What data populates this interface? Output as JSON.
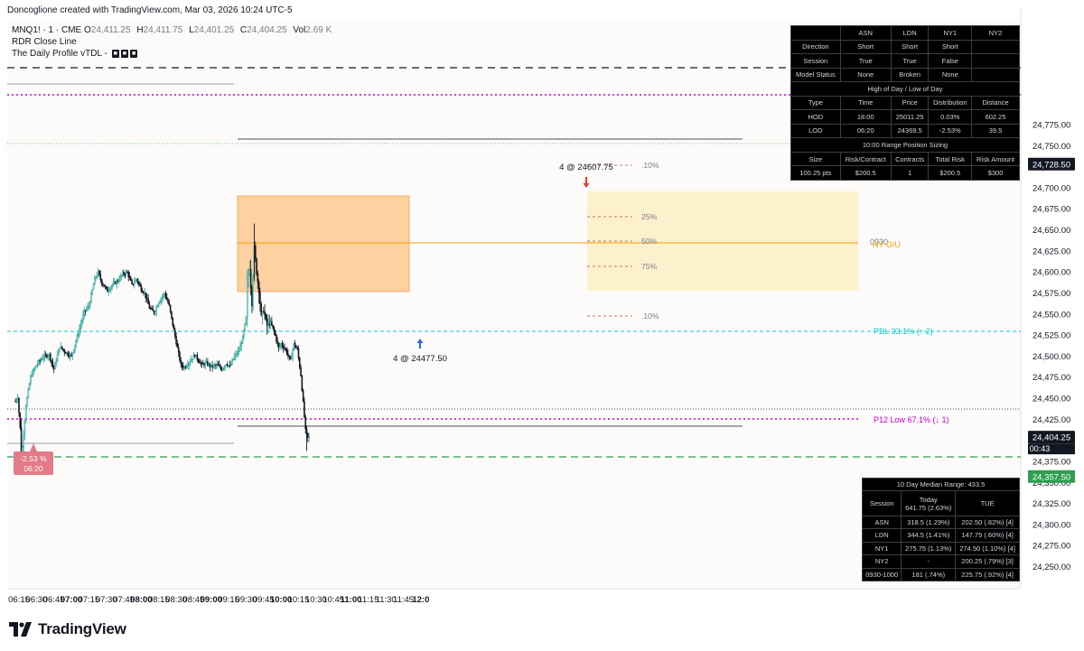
{
  "header": {
    "attribution": "Doncoglione created with TradingView.com, Mar 03, 2026 10:24 UTC-5"
  },
  "legend": {
    "symbol": "MNQ1! · 1 · CME",
    "ohlc": [
      {
        "k": "O",
        "v": "24,411.25"
      },
      {
        "k": "H",
        "v": "24,411.75"
      },
      {
        "k": "L",
        "v": "24,401.25"
      },
      {
        "k": "C",
        "v": "24,404.25"
      },
      {
        "k": "Vol",
        "v": "2.69 K"
      }
    ],
    "indicator_1": "RDR Close Line",
    "indicator_2": "The Daily Profile vTDL -",
    "indicator_2_pills": [
      "■",
      "■",
      "■"
    ]
  },
  "brand": {
    "name": "TradingView",
    "icon": "tradingview-logo-icon"
  },
  "colors": {
    "up": "#26a69a",
    "up_fill": "#ffffff",
    "down": "#131722",
    "magenta": "#cc00cc",
    "green": "#2e8b57",
    "cyan": "#00cccc",
    "orange_box": "#ffc58a",
    "yellow_box": "#fdebb9",
    "orange_line": "#f0a500",
    "pink_label": "#e37a87",
    "blue_arrow": "#2962ff",
    "red_arrow": "#e53935"
  },
  "chart_data": {
    "type": "candlestick",
    "title": "MNQ1! 1-minute",
    "x_tick_labels": [
      "06:15",
      "06:30",
      "06:45",
      "07:00",
      "07:15",
      "07:30",
      "07:45",
      "08:00",
      "08:15",
      "08:30",
      "08:45",
      "09:00",
      "09:15",
      "09:30",
      "09:45",
      "10:00",
      "10:15",
      "10:30",
      "10:45",
      "11:00",
      "11:15",
      "11:30",
      "11:45",
      "12:0"
    ],
    "x_tick_bold": [
      "07:00",
      "08:00",
      "09:00",
      "10:00",
      "11:00",
      "12:0"
    ],
    "y_tick_labels": [
      "24,250.00",
      "24,275.00",
      "24,300.00",
      "24,325.00",
      "24,350.00",
      "24,375.00",
      "24,400.00",
      "24,425.00",
      "24,450.00",
      "24,475.00",
      "24,500.00",
      "24,525.00",
      "24,550.00",
      "24,575.00",
      "24,600.00",
      "24,625.00",
      "24,650.00",
      "24,675.00",
      "24,700.00",
      "24,725.00",
      "24,750.00",
      "24,775.00"
    ],
    "ylim": [
      24240,
      24785
    ],
    "price_tags": [
      {
        "label": "24,728.50",
        "price": 24728.5,
        "color": "#131722"
      },
      {
        "label": "24,404.25",
        "sub": "00:43",
        "price": 24404.25,
        "color": "#131722"
      },
      {
        "label": "24,357.50",
        "price": 24357.5,
        "color": "#2e9e4f"
      }
    ],
    "anchors": [
      [
        "06:12",
        24447
      ],
      [
        "06:14",
        24452
      ],
      [
        "06:16",
        24415
      ],
      [
        "06:17",
        24383
      ],
      [
        "06:18",
        24392
      ],
      [
        "06:21",
        24442
      ],
      [
        "06:25",
        24476
      ],
      [
        "06:30",
        24490
      ],
      [
        "06:36",
        24500
      ],
      [
        "06:41",
        24502
      ],
      [
        "06:45",
        24485
      ],
      [
        "06:50",
        24512
      ],
      [
        "06:55",
        24505
      ],
      [
        "07:00",
        24500
      ],
      [
        "07:06",
        24528
      ],
      [
        "07:11",
        24553
      ],
      [
        "07:15",
        24560
      ],
      [
        "07:17",
        24572
      ],
      [
        "07:20",
        24592
      ],
      [
        "07:23",
        24600
      ],
      [
        "07:26",
        24588
      ],
      [
        "07:31",
        24578
      ],
      [
        "07:35",
        24585
      ],
      [
        "07:40",
        24590
      ],
      [
        "07:44",
        24598
      ],
      [
        "07:48",
        24600
      ],
      [
        "07:52",
        24585
      ],
      [
        "07:56",
        24592
      ],
      [
        "08:00",
        24580
      ],
      [
        "08:03",
        24575
      ],
      [
        "08:07",
        24558
      ],
      [
        "08:11",
        24552
      ],
      [
        "08:15",
        24565
      ],
      [
        "08:20",
        24575
      ],
      [
        "08:24",
        24560
      ],
      [
        "08:27",
        24538
      ],
      [
        "08:31",
        24510
      ],
      [
        "08:34",
        24490
      ],
      [
        "08:37",
        24487
      ],
      [
        "08:42",
        24495
      ],
      [
        "08:46",
        24502
      ],
      [
        "08:52",
        24490
      ],
      [
        "08:56",
        24492
      ],
      [
        "09:00",
        24488
      ],
      [
        "09:05",
        24490
      ],
      [
        "09:09",
        24485
      ],
      [
        "09:13",
        24492
      ],
      [
        "09:16",
        24488
      ],
      [
        "09:20",
        24500
      ],
      [
        "09:24",
        24507
      ],
      [
        "09:27",
        24522
      ],
      [
        "09:30",
        24545
      ],
      [
        "09:31",
        24590
      ],
      [
        "09:33",
        24605
      ],
      [
        "09:35",
        24562
      ],
      [
        "09:37",
        24630
      ],
      [
        "09:39",
        24600
      ],
      [
        "09:41",
        24578
      ],
      [
        "09:43",
        24548
      ],
      [
        "09:45",
        24555
      ],
      [
        "09:48",
        24537
      ],
      [
        "09:51",
        24540
      ],
      [
        "09:54",
        24530
      ],
      [
        "09:58",
        24510
      ],
      [
        "10:00",
        24515
      ],
      [
        "10:04",
        24508
      ],
      [
        "10:08",
        24495
      ],
      [
        "10:11",
        24515
      ],
      [
        "10:14",
        24508
      ],
      [
        "10:17",
        24478
      ],
      [
        "10:19",
        24445
      ],
      [
        "10:21",
        24412
      ],
      [
        "10:23",
        24403
      ],
      [
        "10:24",
        24404
      ]
    ],
    "session_table": {
      "columns": [
        "",
        "ASN",
        "LDN",
        "NY1",
        "NY2"
      ],
      "rows": [
        [
          "Direction",
          "Short",
          "Short",
          "Short",
          ""
        ],
        [
          "Session",
          "True",
          "True",
          "False",
          ""
        ],
        [
          "Model Status",
          "None",
          "Broken",
          "None",
          ""
        ]
      ],
      "hl_title": "High of Day / Low of Day",
      "hl_columns": [
        "Type",
        "Time",
        "Price",
        "Distribution",
        "Distance"
      ],
      "hl_rows": [
        [
          "HOD",
          "18:00",
          "25011.25",
          "0.03%",
          "602.25"
        ],
        [
          "LOD",
          "06:20",
          "24369.5",
          "-2.53%",
          "39.5"
        ]
      ],
      "size_title": "10:00 Range Position Sizing",
      "size_columns": [
        "Size",
        "Risk/Contract",
        "Contracts",
        "Total Risk",
        "Risk Amount"
      ],
      "size_rows": [
        [
          "100.25 pts",
          "$200.5",
          "1",
          "$200.5",
          "$300"
        ]
      ]
    },
    "range_table": {
      "title": "10 Day Median Range: 433.5",
      "head": [
        "Session",
        "Today\n641.75 (2.63%)",
        "TUE"
      ],
      "rows": [
        [
          "ASN",
          "318.5 (1.29%)",
          "202.50 (.82%) [4]"
        ],
        [
          "LDN",
          "344.5 (1.41%)",
          "147.75 (.60%) [4]"
        ],
        [
          "NY1",
          "275.75 (1.13%)",
          "274.50 (1.10%) [4]"
        ],
        [
          "NY2",
          "-",
          "200.25 (.79%) [3]"
        ],
        [
          "0930-1000",
          "181 (.74%)",
          "225.75 (.92%) [4]"
        ]
      ]
    },
    "annotations": {
      "long_entry": "4 @ 24477.50",
      "short_entry": "4 @ 24607.75",
      "lod_label": "-2.53 %\n06:20",
      "pdl_label": "PDL 33.1% (↑ 2)",
      "p12_label": "P12 Low 67.1% (↓ 1)",
      "ny_ou_label": "NY O/U",
      "ny_ou_code": "0930",
      "fib_labels": [
        ".10%",
        "25%",
        "50%",
        "75%",
        ".10%"
      ]
    }
  }
}
